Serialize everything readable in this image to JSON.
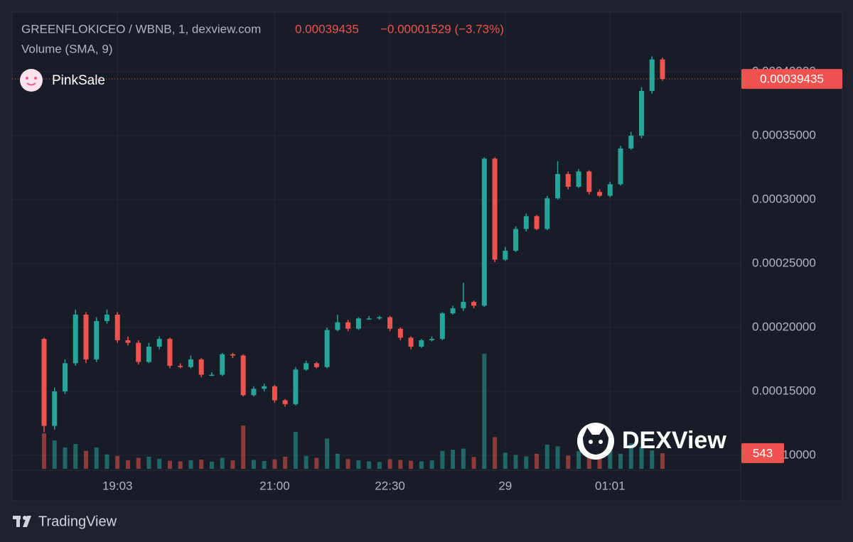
{
  "chart_data": {
    "type": "candlestick",
    "title": "GREENFLOKICEO / WBNB, 1, dexview.com",
    "change": "−0.00001529 (−3.73%)",
    "volume_title": "Volume (SMA, 9)",
    "categories": [
      null,
      null,
      null,
      null,
      null,
      null,
      null,
      "19:03",
      null,
      null,
      null,
      null,
      null,
      null,
      null,
      null,
      null,
      null,
      null,
      null,
      null,
      null,
      "21:00",
      null,
      null,
      null,
      null,
      null,
      null,
      null,
      null,
      null,
      null,
      "22:30",
      null,
      null,
      null,
      null,
      null,
      null,
      null,
      null,
      null,
      null,
      "29",
      null,
      null,
      null,
      null,
      null,
      null,
      null,
      null,
      null,
      "01:01",
      null,
      null,
      null,
      null,
      null
    ],
    "open": [
      0.000191,
      0.000123,
      0.00015,
      0.000172,
      0.00021,
      0.000175,
      0.000205,
      0.00021,
      0.00019,
      0.000188,
      0.000173,
      0.000185,
      0.000191,
      0.00017,
      0.000169,
      0.000175,
      0.000163,
      0.000163,
      0.000179,
      0.000178,
      0.000147,
      0.000152,
      0.000154,
      0.000143,
      0.00014,
      0.000167,
      0.000172,
      0.000169,
      0.000198,
      0.000204,
      0.000199,
      0.000207,
      0.000207,
      0.000208,
      0.000199,
      0.000192,
      0.000185,
      0.00019,
      0.000191,
      0.000211,
      0.000215,
      0.00022,
      0.000217,
      0.000332,
      0.000253,
      0.00026,
      0.000277,
      0.000287,
      0.000277,
      0.000301,
      0.00032,
      0.00031,
      0.000322,
      0.000306,
      0.000303,
      0.000312,
      0.00034,
      0.00035,
      0.000385,
      0.00040964
    ],
    "high": [
      0.000192,
      0.000153,
      0.000175,
      0.000214,
      0.000212,
      0.000208,
      0.000214,
      0.000212,
      0.000193,
      0.00019,
      0.000188,
      0.000193,
      0.000192,
      0.000172,
      0.000178,
      0.000176,
      0.000165,
      0.00018,
      0.00018,
      0.000179,
      0.000154,
      0.000156,
      0.000155,
      0.000144,
      0.000169,
      0.000174,
      0.000173,
      0.0002,
      0.00021,
      0.000206,
      0.000208,
      0.000209,
      0.000209,
      0.000209,
      0.0002,
      0.000193,
      0.000191,
      0.000193,
      0.000212,
      0.000217,
      0.000235,
      0.000221,
      0.000333,
      0.000333,
      0.000263,
      0.000279,
      0.000289,
      0.000288,
      0.000303,
      0.00033,
      0.000322,
      0.000324,
      0.000323,
      0.000308,
      0.000314,
      0.000342,
      0.000353,
      0.000388,
      0.000412,
      0.000411
    ],
    "low": [
      0.000118,
      0.00012,
      0.000148,
      0.00017,
      0.000172,
      0.000173,
      0.000203,
      0.000188,
      0.000186,
      0.000171,
      0.000172,
      0.000183,
      0.000168,
      0.000168,
      0.000168,
      0.000161,
      0.000162,
      0.000162,
      0.000176,
      0.000146,
      0.000146,
      0.00015,
      0.000141,
      0.000138,
      0.000139,
      0.000166,
      0.000168,
      0.000168,
      0.000197,
      0.000197,
      0.000198,
      0.000206,
      0.000206,
      0.000197,
      0.00019,
      0.000183,
      0.000184,
      0.000189,
      0.00019,
      0.00021,
      0.000213,
      0.000215,
      0.000216,
      0.000251,
      0.000252,
      0.000259,
      0.000275,
      0.000276,
      0.000276,
      0.0003,
      0.000308,
      0.000309,
      0.000304,
      0.000302,
      0.000302,
      0.000311,
      0.000339,
      0.000348,
      0.000383,
      0.000393
    ],
    "close": [
      0.000123,
      0.00015,
      0.000172,
      0.00021,
      0.000175,
      0.000205,
      0.00021,
      0.00019,
      0.000188,
      0.000173,
      0.000185,
      0.000191,
      0.00017,
      0.000169,
      0.000175,
      0.000163,
      0.000163,
      0.000179,
      0.000178,
      0.000147,
      0.000152,
      0.000154,
      0.000143,
      0.00014,
      0.000167,
      0.000172,
      0.000169,
      0.000198,
      0.000204,
      0.000199,
      0.000207,
      0.000207,
      0.000208,
      0.000199,
      0.000192,
      0.000185,
      0.00019,
      0.000191,
      0.000211,
      0.000215,
      0.00022,
      0.000217,
      0.000332,
      0.000253,
      0.00026,
      0.000277,
      0.000287,
      0.000277,
      0.000301,
      0.00032,
      0.00031,
      0.000322,
      0.000306,
      0.000303,
      0.000312,
      0.00034,
      0.00035,
      0.000385,
      0.00040964,
      0.00039435
    ],
    "volume": [
      1230,
      985,
      740,
      860,
      620,
      740,
      500,
      450,
      300,
      380,
      420,
      350,
      280,
      260,
      300,
      320,
      250,
      380,
      290,
      1500,
      310,
      270,
      330,
      420,
      1280,
      450,
      380,
      1050,
      520,
      340,
      300,
      260,
      240,
      330,
      310,
      280,
      260,
      290,
      620,
      660,
      700,
      410,
      3990,
      1100,
      560,
      480,
      430,
      520,
      840,
      780,
      460,
      610,
      420,
      450,
      700,
      520,
      880,
      760,
      640,
      543
    ],
    "ylim": [
      8.94e-05,
      0.0004461
    ],
    "yticks": [
      {
        "value": 0.0001,
        "label": "0.00010000"
      },
      {
        "value": 0.00015,
        "label": "0.00015000"
      },
      {
        "value": 0.0002,
        "label": "0.00020000"
      },
      {
        "value": 0.00025,
        "label": "0.00025000"
      },
      {
        "value": 0.0003,
        "label": "0.00030000"
      },
      {
        "value": 0.00035,
        "label": "0.00035000"
      },
      {
        "value": 0.0004,
        "label": "0.00040000"
      }
    ],
    "y2lim": [
      0,
      15800
    ],
    "grid": true,
    "up_color": "#26a69a",
    "down_color": "#ef5350"
  },
  "branding": {
    "pinksale": "PinkSale",
    "dexview": "DEXView",
    "tradingview": "TradingView"
  }
}
